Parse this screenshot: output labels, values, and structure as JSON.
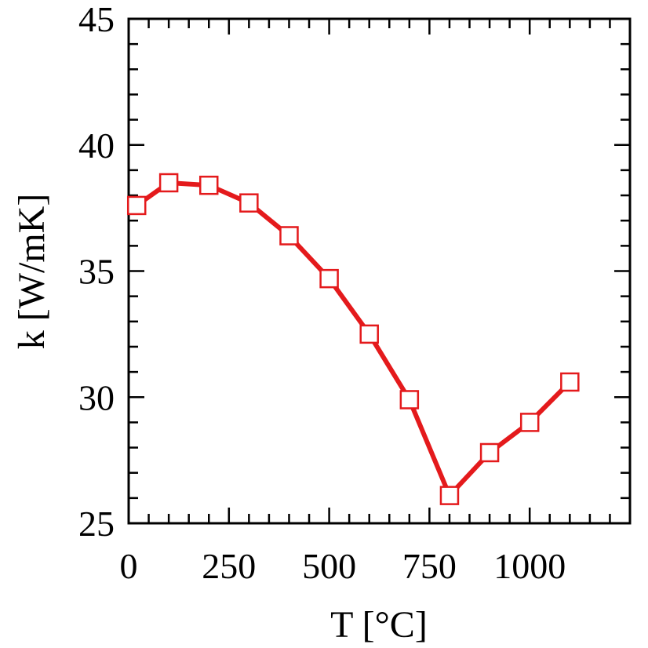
{
  "chart_data": {
    "type": "line",
    "title": "",
    "xlabel": "T [°C]",
    "ylabel": "k [W/mK]",
    "xlim": [
      0,
      1250
    ],
    "ylim": [
      25,
      45
    ],
    "x_ticks": [
      0,
      250,
      500,
      750,
      1000
    ],
    "x_tick_labels": [
      "0",
      "250",
      "500",
      "750",
      "1000"
    ],
    "y_ticks": [
      25,
      30,
      35,
      40,
      45
    ],
    "y_tick_labels": [
      "25",
      "30",
      "35",
      "40",
      "45"
    ],
    "x_minor_step": 50,
    "y_minor_step": 1,
    "grid": false,
    "series": [
      {
        "color": "#e41a1c",
        "marker": "open-square",
        "x": [
          20,
          100,
          200,
          300,
          400,
          500,
          600,
          700,
          800,
          900,
          1000,
          1100
        ],
        "y": [
          37.6,
          38.5,
          38.4,
          37.7,
          36.4,
          34.7,
          32.5,
          29.9,
          26.1,
          27.8,
          29.0,
          30.6
        ]
      }
    ]
  }
}
